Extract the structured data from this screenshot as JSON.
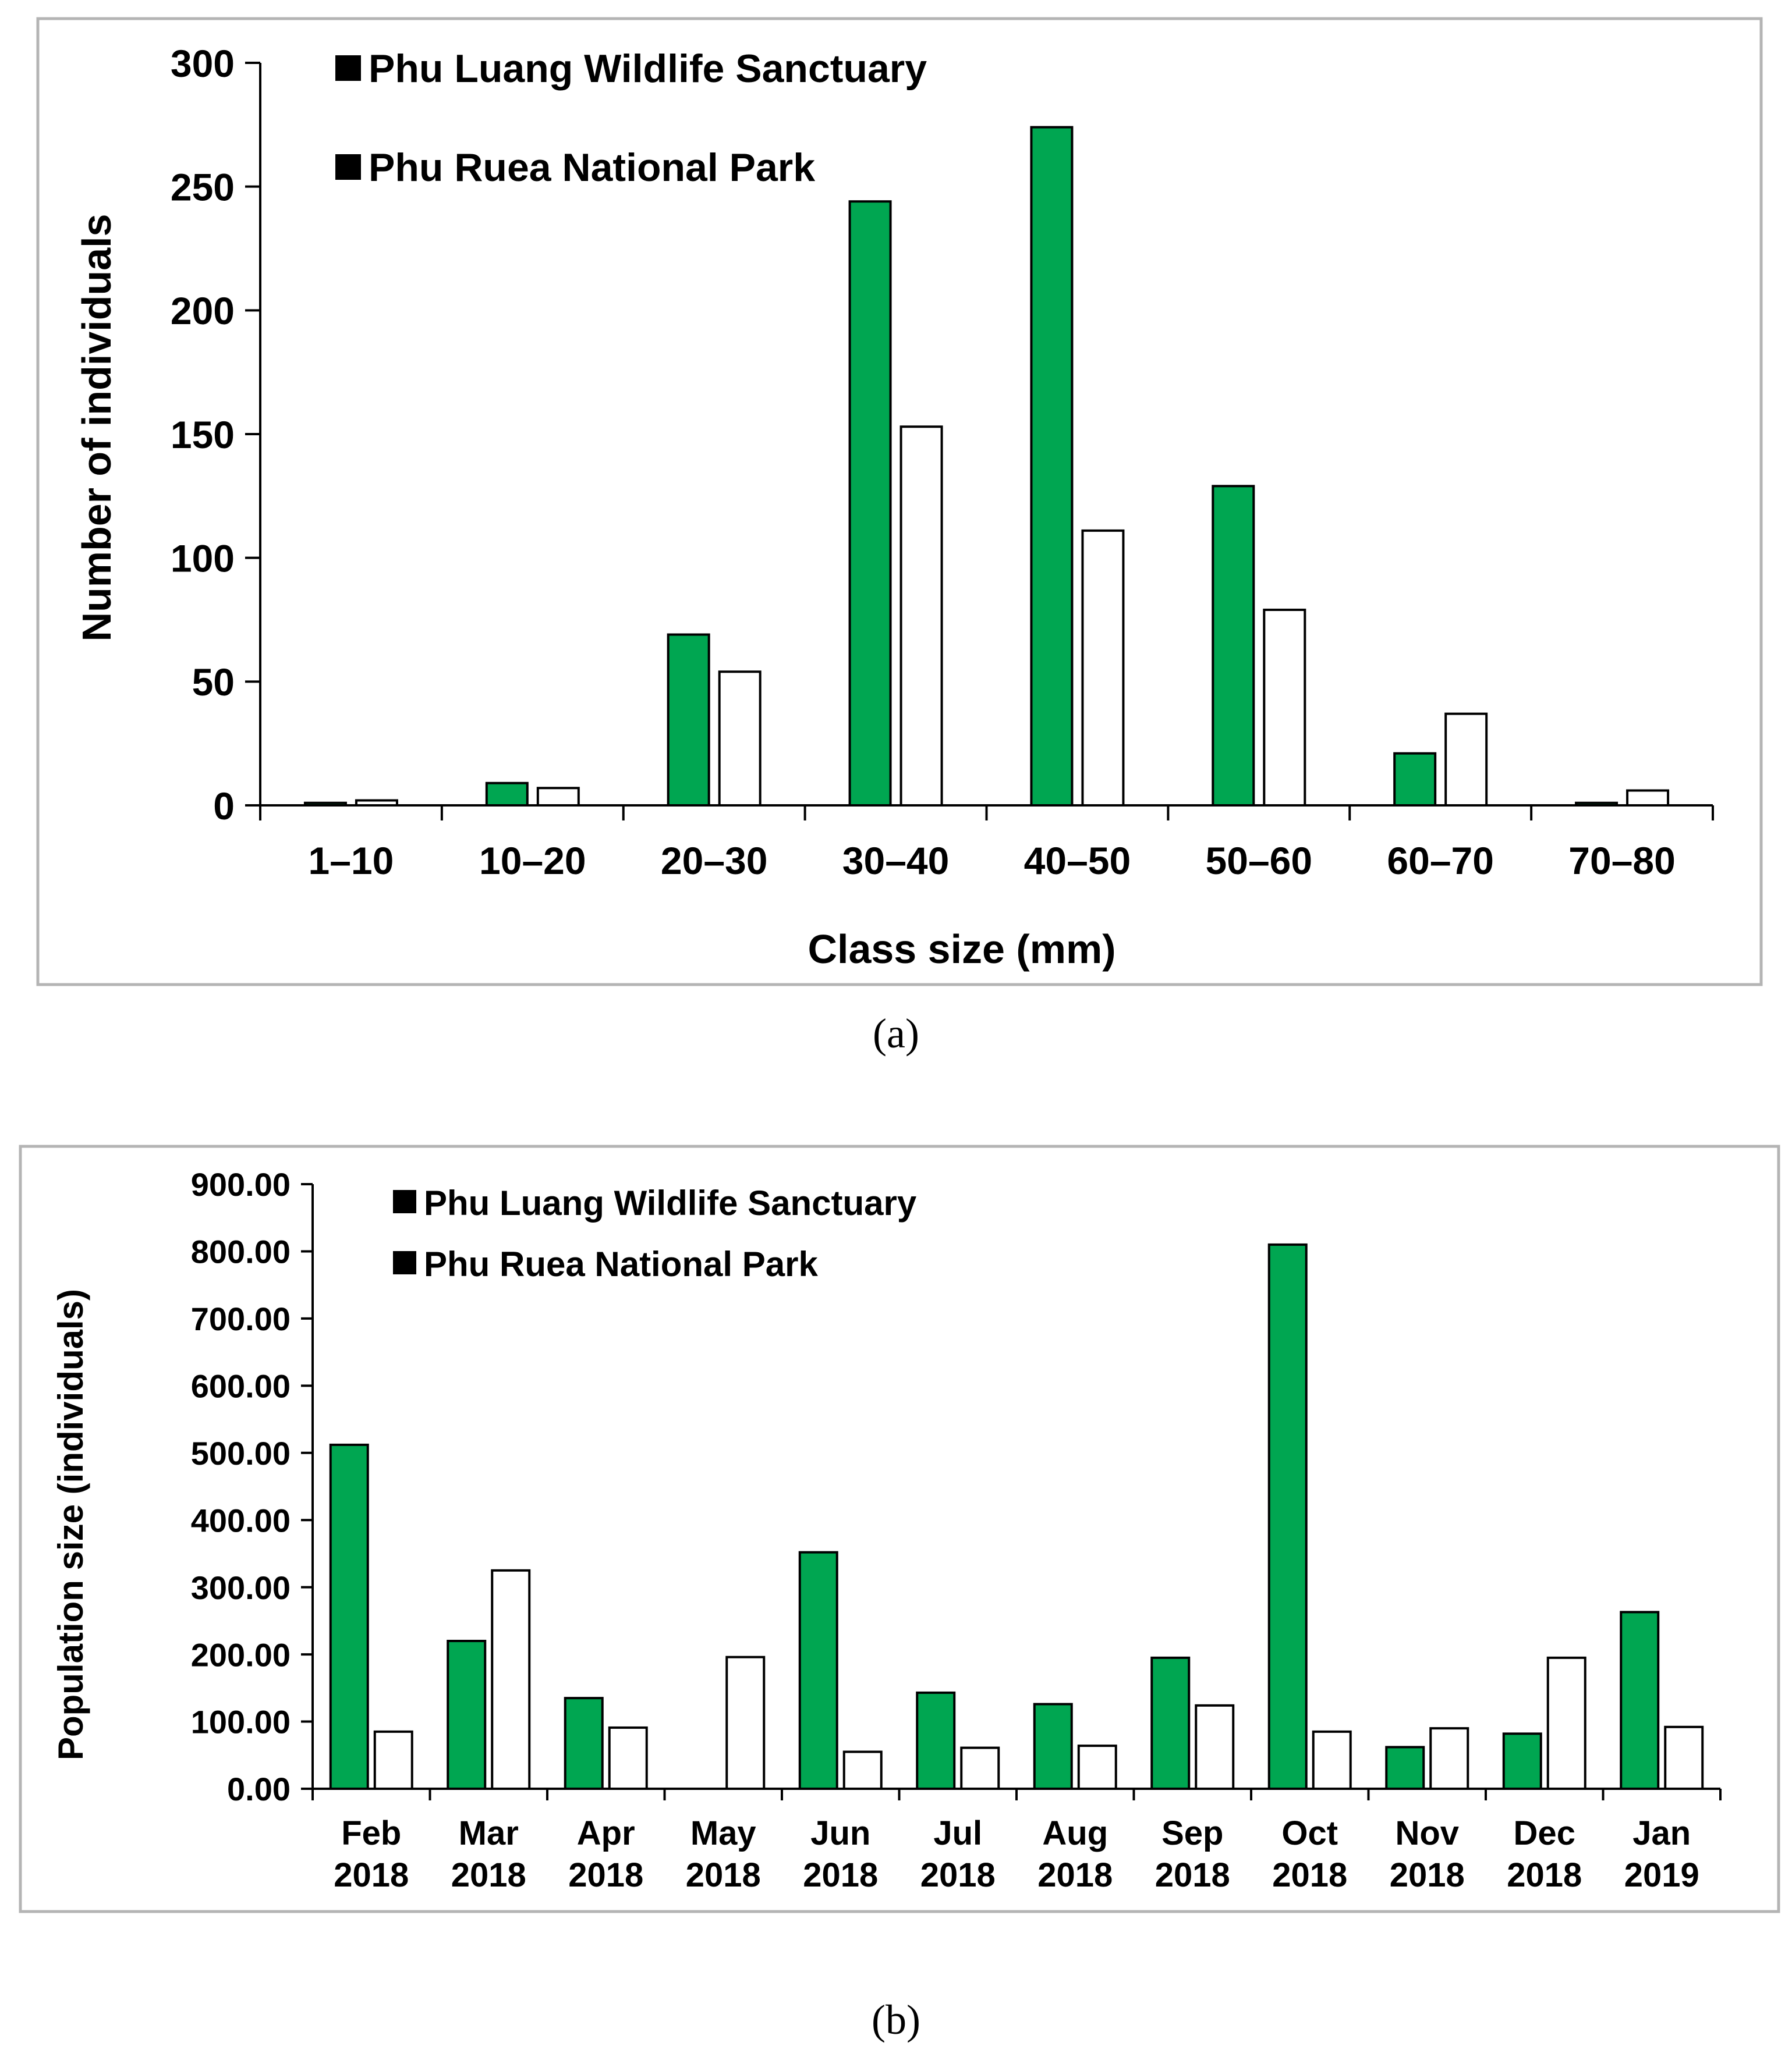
{
  "colors": {
    "green": "#00a651",
    "white": "#ffffff"
  },
  "chart_data": [
    {
      "type": "bar",
      "panel_label": "(a)",
      "xlabel": "Class size (mm)",
      "ylabel": "Number of individuals",
      "ylim": [
        0,
        300
      ],
      "yticks": [
        "0",
        "50",
        "100",
        "150",
        "200",
        "250",
        "300"
      ],
      "categories": [
        "1–10",
        "10–20",
        "20–30",
        "30–40",
        "40–50",
        "50–60",
        "60–70",
        "70–80"
      ],
      "legend_position": "top-left",
      "series": [
        {
          "name": "Phu Luang Wildlife Sanctuary",
          "color": "#00a651",
          "values": [
            1,
            9,
            69,
            244,
            274,
            129,
            21,
            1
          ]
        },
        {
          "name": "Phu Ruea National Park",
          "color": "#ffffff",
          "values": [
            2,
            7,
            54,
            153,
            111,
            79,
            37,
            6
          ]
        }
      ]
    },
    {
      "type": "bar",
      "panel_label": "(b)",
      "xlabel": "",
      "ylabel": "Population size (individuals)",
      "ylim": [
        0,
        900
      ],
      "yticks": [
        "0.00",
        "100.00",
        "200.00",
        "300.00",
        "400.00",
        "500.00",
        "600.00",
        "700.00",
        "800.00",
        "900.00"
      ],
      "categories": [
        [
          "Feb",
          "2018"
        ],
        [
          "Mar",
          "2018"
        ],
        [
          "Apr",
          "2018"
        ],
        [
          "May",
          "2018"
        ],
        [
          "Jun",
          "2018"
        ],
        [
          "Jul",
          "2018"
        ],
        [
          "Aug",
          "2018"
        ],
        [
          "Sep",
          "2018"
        ],
        [
          "Oct",
          "2018"
        ],
        [
          "Nov",
          "2018"
        ],
        [
          "Dec",
          "2018"
        ],
        [
          "Jan",
          "2019"
        ]
      ],
      "legend_position": "top-left",
      "series": [
        {
          "name": "Phu Luang Wildlife Sanctuary",
          "color": "#00a651",
          "values": [
            512,
            220,
            135,
            0,
            352,
            143,
            126,
            195,
            810,
            62,
            82,
            263
          ]
        },
        {
          "name": "Phu Ruea National Park",
          "color": "#ffffff",
          "values": [
            85,
            325,
            91,
            196,
            55,
            61,
            64,
            124,
            85,
            90,
            195,
            92
          ]
        }
      ]
    }
  ]
}
